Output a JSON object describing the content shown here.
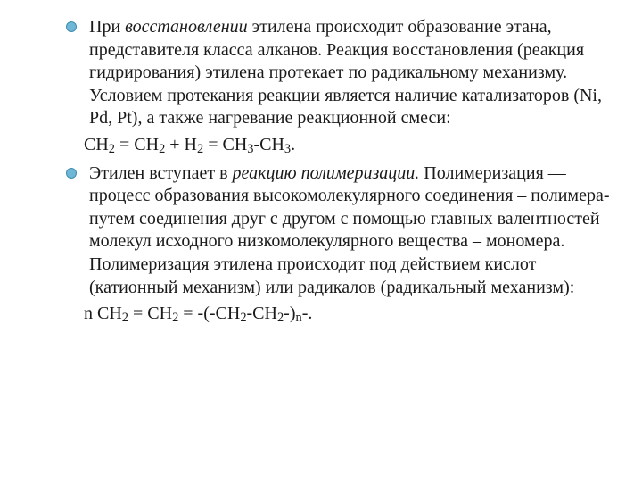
{
  "bullet_fill": "#6fb7d6",
  "bullet_border": "#3f8ead",
  "text_color": "#1a1a1a",
  "items": [
    {
      "para_html": "При <em>восстановлении</em> этилена происходит образование этана, представителя класса алканов. Реакция восстановления (реакция гидрирования) этилена протекает по радикальному механизму. Условием протекания реакции является наличие катализаторов (Ni, Pd, Pt), а также нагревание реакционной смеси:",
      "equation_html": "CH<sub>2</sub>&nbsp;= CH<sub>2</sub>&nbsp;+ H<sub>2</sub>&nbsp;= CH<sub>3</sub>-CH<sub>3</sub>."
    },
    {
      "para_html": "Этилен вступает в <em>реакцию полимеризации.</em> Полимеризация — процесс образования высокомолекулярного соединения – полимера-путем соединения друг с другом с помощью главных валентностей молекул исходного низкомолекулярного вещества – мономера. Полимеризация этилена происходит под действием кислот (катионный механизм) или радикалов (радикальный механизм):",
      "equation_html": "n CH<sub>2</sub>&nbsp;= CH<sub>2</sub>&nbsp;= -(-CH<sub>2</sub>-CH<sub>2</sub>-)<sub>n</sub>-."
    }
  ]
}
